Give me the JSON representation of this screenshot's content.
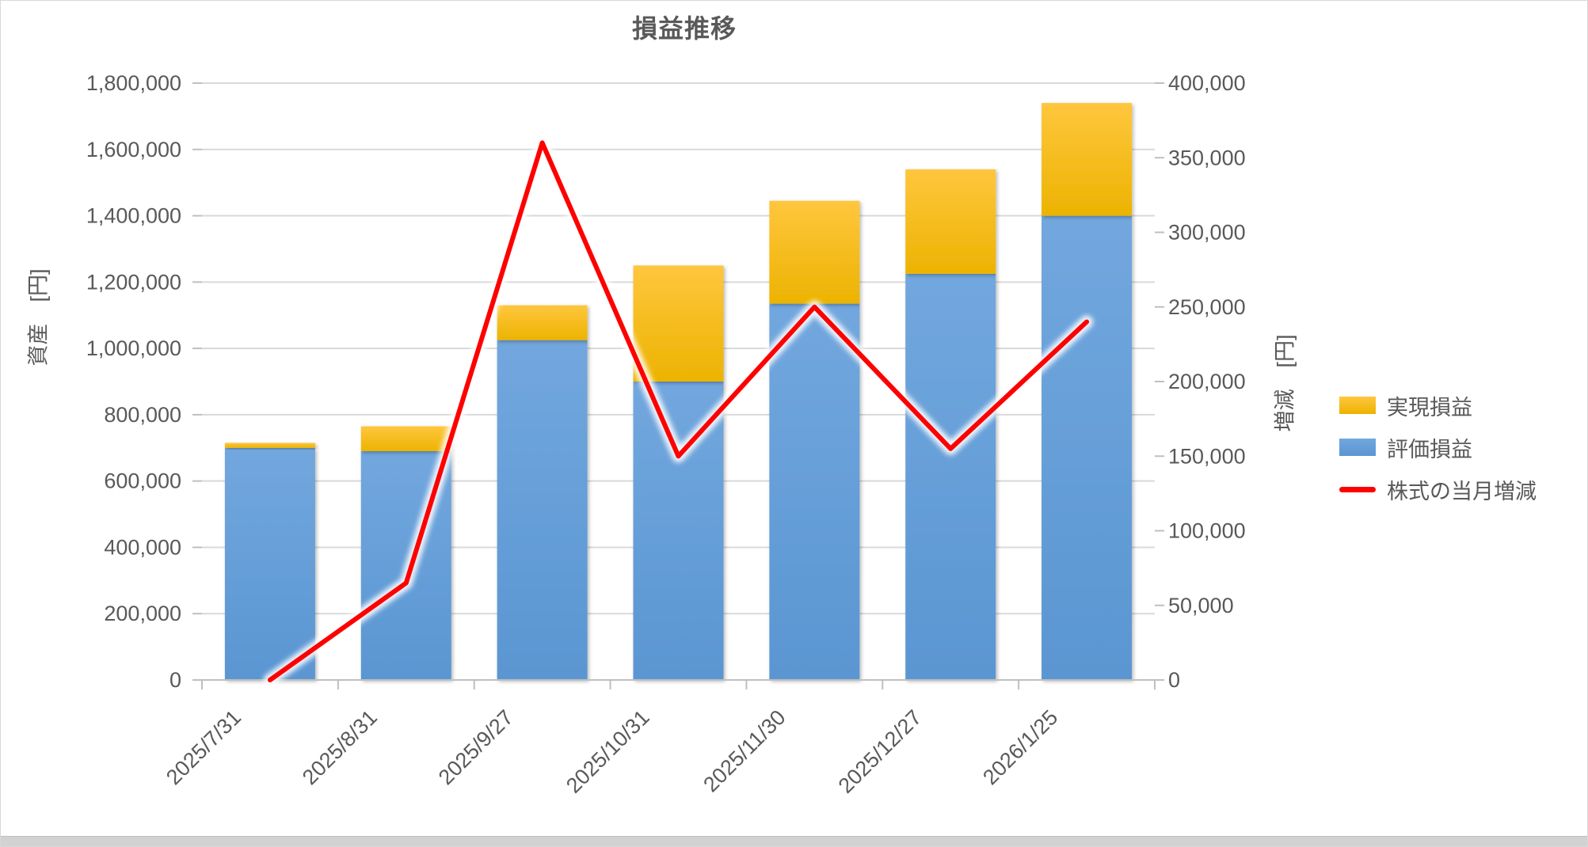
{
  "title": "損益推移",
  "legend": {
    "items": [
      {
        "label": "実現損益"
      },
      {
        "label": "評価損益"
      },
      {
        "label": "株式の当月増減"
      }
    ]
  },
  "colors": {
    "realized_top": "#FFC63E",
    "realized_bottom": "#ECB301",
    "unrealized_top": "#72A7DE",
    "unrealized_bottom": "#5A96D2",
    "line": "#FF0000",
    "grid": "#D9D9D9",
    "axis": "#BFBFBF",
    "text": "#595959",
    "strip": "#D2D2D2"
  },
  "chart_data": {
    "type": "combo-stacked-bar-line",
    "title": "損益推移",
    "categories": [
      "2025/7/31",
      "2025/8/31",
      "2025/9/27",
      "2025/10/31",
      "2025/11/30",
      "2025/12/27",
      "2026/1/25"
    ],
    "series": [
      {
        "name": "評価損益",
        "type": "bar",
        "stack": "assets",
        "yaxis": "left",
        "color_key": "unrealized",
        "values": [
          700000,
          690000,
          1025000,
          900000,
          1135000,
          1225000,
          1400000
        ]
      },
      {
        "name": "実現損益",
        "type": "bar",
        "stack": "assets",
        "yaxis": "left",
        "color_key": "realized",
        "values": [
          15000,
          75000,
          105000,
          350000,
          310000,
          315000,
          340000
        ]
      },
      {
        "name": "株式の当月増減",
        "type": "line",
        "yaxis": "right",
        "color_key": "line",
        "values": [
          0,
          65000,
          360000,
          150000,
          250000,
          155000,
          240000
        ]
      }
    ],
    "left_axis": {
      "label": "資産　[円]",
      "min": 0,
      "max": 1800000,
      "step": 200000,
      "tick_labels": [
        "0",
        "200,000",
        "400,000",
        "600,000",
        "800,000",
        "1,000,000",
        "1,200,000",
        "1,400,000",
        "1,600,000",
        "1,800,000"
      ]
    },
    "right_axis": {
      "label": "増減　[円]",
      "min": 0,
      "max": 400000,
      "step": 50000,
      "tick_labels": [
        "0",
        "50,000",
        "100,000",
        "150,000",
        "200,000",
        "250,000",
        "300,000",
        "350,000",
        "400,000"
      ]
    },
    "grid": "horizontal-only",
    "legend_position": "right"
  }
}
